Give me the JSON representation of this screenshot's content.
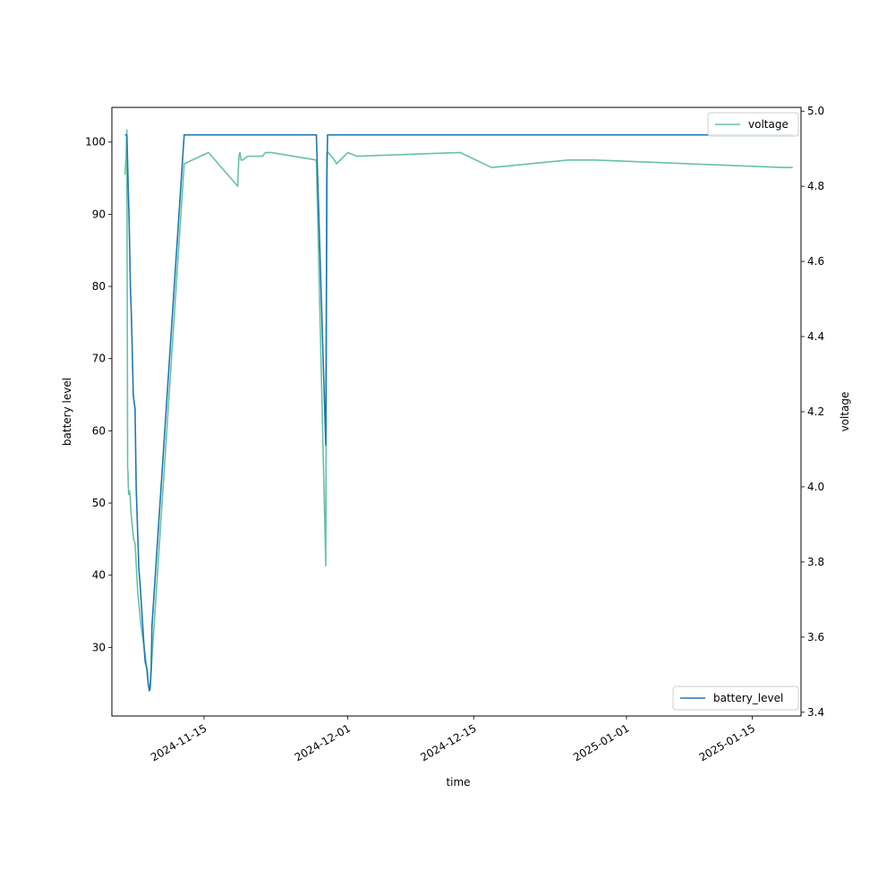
{
  "chart_data": {
    "type": "line",
    "xlabel": "time",
    "ylabel_left": "battery level",
    "ylabel_right": "voltage",
    "x_range": [
      "2024-11-04T18:00",
      "2025-01-20T10:00"
    ],
    "ylim_left": [
      20.5,
      104.8
    ],
    "ylim_right": [
      3.39,
      5.01
    ],
    "x_ticks": [
      "2024-11-15",
      "2024-12-01",
      "2024-12-15",
      "2025-01-01",
      "2025-01-15"
    ],
    "y_ticks_left": [
      "30",
      "40",
      "50",
      "60",
      "70",
      "80",
      "90",
      "100"
    ],
    "y_ticks_right": [
      "3.4",
      "3.6",
      "3.8",
      "4.0",
      "4.2",
      "4.4",
      "4.6",
      "4.8",
      "5.0"
    ],
    "legends": {
      "voltage": {
        "location": "upper right",
        "label": "voltage"
      },
      "battery_level": {
        "location": "lower right",
        "label": "battery_level"
      }
    },
    "series": [
      {
        "name": "battery_level",
        "axis": "left",
        "color": "#1f77b4",
        "x": [
          "2024-11-06T05:00",
          "2024-11-06T10:00",
          "2024-11-06T11:00",
          "2024-11-06T14:00",
          "2024-11-06T16:00",
          "2024-11-06T18:00",
          "2024-11-06T19:00",
          "2024-11-06T20:00",
          "2024-11-06T22:00",
          "2024-11-07T00:00",
          "2024-11-07T03:00",
          "2024-11-07T08:00",
          "2024-11-07T11:00",
          "2024-11-07T18:00",
          "2024-11-07T21:00",
          "2024-11-08T02:00",
          "2024-11-08T08:00",
          "2024-11-08T11:00",
          "2024-11-08T16:00",
          "2024-11-08T19:00",
          "2024-11-08T22:00",
          "2024-11-09T00:00",
          "2024-11-09T03:00",
          "2024-11-09T05:00",
          "2024-11-12T19:00",
          "2024-11-27T12:00",
          "2024-11-28T13:00",
          "2024-11-28T16:00",
          "2024-11-28T18:00",
          "2024-11-28T20:00",
          "2024-11-28T22:00",
          "2024-12-01T12:00",
          "2025-01-18T12:00",
          "2025-01-19T12:00"
        ],
        "values": [
          101,
          101,
          99,
          93,
          89,
          84,
          81,
          79,
          76,
          72,
          65,
          63,
          52,
          41,
          39,
          35,
          30,
          28,
          27,
          25,
          24,
          24.3,
          27,
          33,
          101,
          101,
          58,
          95,
          101,
          101,
          101,
          101,
          101,
          101
        ]
      },
      {
        "name": "voltage",
        "axis": "right",
        "color": "#66c2a5",
        "x": [
          "2024-11-06T05:00",
          "2024-11-06T08:00",
          "2024-11-06T10:00",
          "2024-11-06T12:00",
          "2024-11-06T13:00",
          "2024-11-06T14:00",
          "2024-11-06T15:00",
          "2024-11-06T17:00",
          "2024-11-06T19:00",
          "2024-11-06T20:00",
          "2024-11-06T22:00",
          "2024-11-07T04:00",
          "2024-11-07T08:00",
          "2024-11-07T15:00",
          "2024-11-08T00:00",
          "2024-11-08T10:00",
          "2024-11-08T20:00",
          "2024-11-09T00:00",
          "2024-11-09T04:00",
          "2024-11-12T19:00",
          "2024-11-15T12:00",
          "2024-11-18T18:00",
          "2024-11-18T21:00",
          "2024-11-19T00:00",
          "2024-11-19T03:00",
          "2024-11-19T08:00",
          "2024-11-19T20:00",
          "2024-11-20T12:00",
          "2024-11-21T12:00",
          "2024-11-21T20:00",
          "2024-11-22T12:00",
          "2024-11-27T12:00",
          "2024-11-28T13:00",
          "2024-11-28T16:00",
          "2024-11-28T20:00",
          "2024-11-29T12:00",
          "2024-11-29T18:00",
          "2024-12-01T00:00",
          "2024-12-02T00:00",
          "2024-12-13T12:00",
          "2024-12-17T00:00",
          "2024-12-25T12:00",
          "2024-12-28T12:00",
          "2025-01-18T12:00",
          "2025-01-18T18:00",
          "2025-01-19T12:00"
        ],
        "values": [
          4.83,
          4.88,
          4.95,
          4.05,
          4.04,
          4.0,
          3.98,
          3.99,
          3.97,
          3.95,
          3.92,
          3.86,
          3.85,
          3.72,
          3.63,
          3.56,
          3.47,
          3.46,
          3.53,
          4.86,
          4.89,
          4.8,
          4.88,
          4.89,
          4.87,
          4.87,
          4.88,
          4.88,
          4.88,
          4.89,
          4.89,
          4.87,
          3.79,
          4.89,
          4.89,
          4.87,
          4.86,
          4.89,
          4.88,
          4.89,
          4.85,
          4.87,
          4.87,
          4.85,
          4.85,
          4.85
        ]
      }
    ]
  }
}
